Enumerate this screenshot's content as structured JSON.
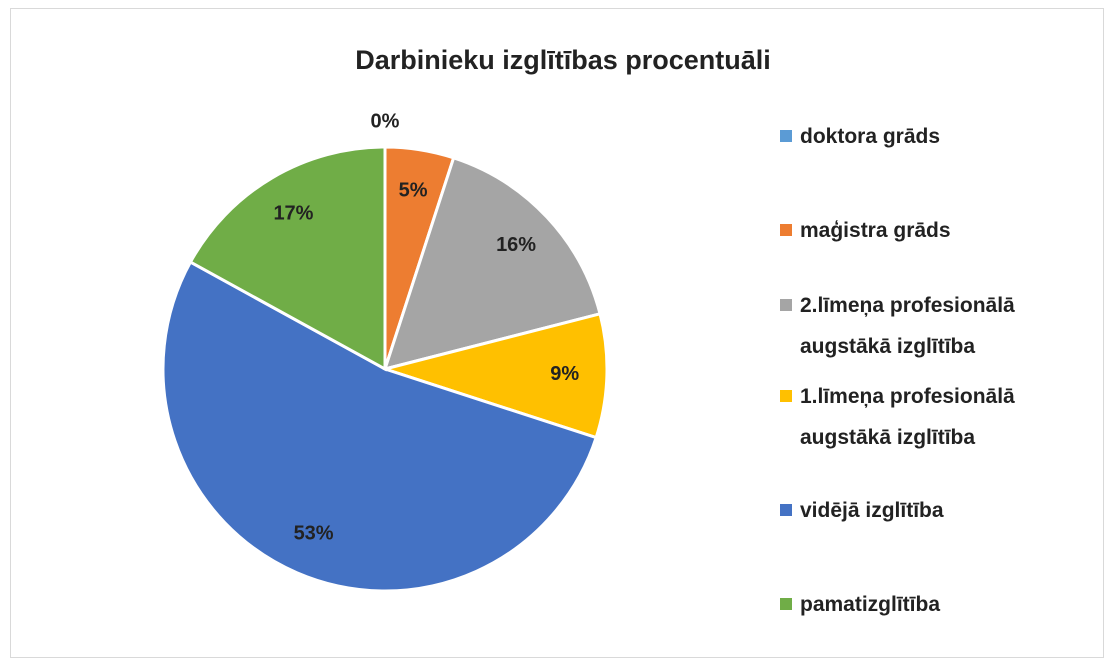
{
  "chart_data": {
    "type": "pie",
    "title": "Darbinieku izglītības procentuāli",
    "categories": [
      "doktora grāds",
      "maģistra grāds",
      "2.līmeņa profesionālā augstākā izglītība",
      "1.līmeņa profesionālā augstākā izglītība",
      "vidējā izglītība",
      "pamatizglītība"
    ],
    "values": [
      0,
      5,
      16,
      9,
      53,
      17
    ],
    "value_labels": [
      "0%",
      "5%",
      "16%",
      "9%",
      "53%",
      "17%"
    ],
    "colors": [
      "#5b9bd5",
      "#ed7d31",
      "#a5a5a5",
      "#ffc000",
      "#4472c4",
      "#70ad47"
    ],
    "legend": "right"
  }
}
